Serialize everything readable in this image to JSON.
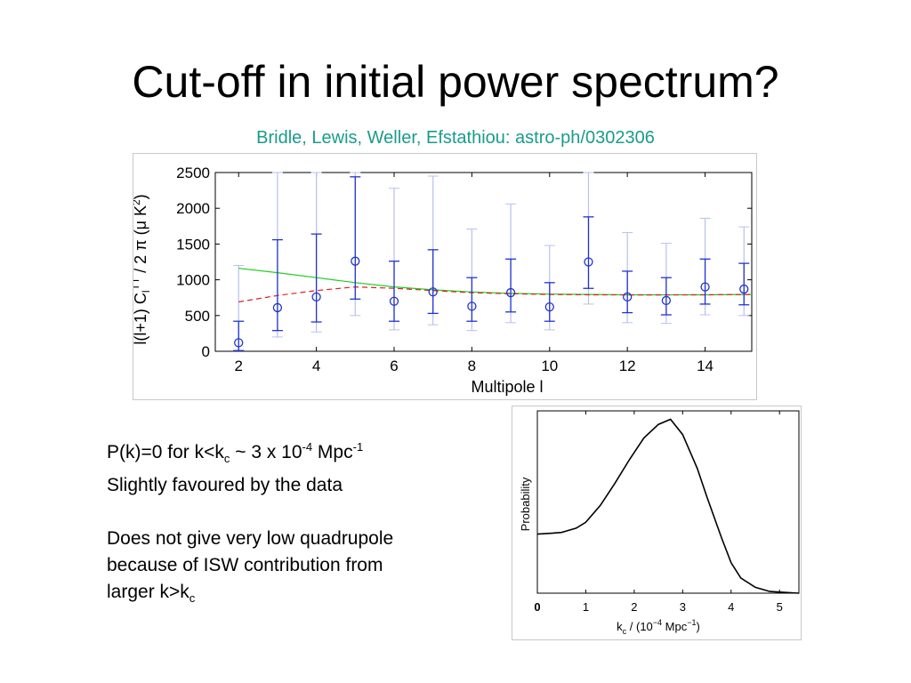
{
  "slide": {
    "title": "Cut-off in initial power spectrum?",
    "subtitle": "Bridle, Lewis, Weller, Efstathiou: astro-ph/0302306",
    "colors": {
      "subtitle": "#1a9c8c",
      "errorbar": "#2233cc",
      "errorbar_light": "#b8c0f0",
      "theory_green": "#22cc22",
      "theory_red": "#dd2222"
    }
  },
  "text": {
    "line1_a": "P(k)=0 for k<k",
    "line1_sub": "c",
    "line1_b": " ~ 3 x 10",
    "line1_sup": "-4",
    "line1_c": " Mpc",
    "line1_sup2": "-1",
    "line2": "Slightly favoured by the data",
    "line3": "Does not give very low quadrupole",
    "line4": "because of ISW contribution from",
    "line5_a": "larger k>k",
    "line5_sub": "c"
  },
  "chart_data": [
    {
      "type": "scatter",
      "xlabel": "Multipole l",
      "ylabel": "l(l+1) C_l^TT / 2 π (μ K^2)",
      "xlim": [
        1.4,
        15.2
      ],
      "ylim": [
        0,
        2500
      ],
      "xticks": [
        "2",
        "4",
        "6",
        "8",
        "10",
        "12",
        "14"
      ],
      "yticks": [
        "0",
        "500",
        "1000",
        "1500",
        "2000",
        "2500"
      ],
      "grid": false,
      "points": [
        {
          "x": 2,
          "y": 120,
          "lo": 10,
          "hi": 420,
          "lo2": 10,
          "hi2": 1200
        },
        {
          "x": 3,
          "y": 610,
          "lo": 290,
          "hi": 1560,
          "lo2": 200,
          "hi2": 2500
        },
        {
          "x": 4,
          "y": 760,
          "lo": 410,
          "hi": 1640,
          "lo2": 270,
          "hi2": 2500
        },
        {
          "x": 5,
          "y": 1260,
          "lo": 730,
          "hi": 2440,
          "lo2": 500,
          "hi2": 2500
        },
        {
          "x": 6,
          "y": 700,
          "lo": 420,
          "hi": 1260,
          "lo2": 300,
          "hi2": 2280
        },
        {
          "x": 7,
          "y": 830,
          "lo": 530,
          "hi": 1420,
          "lo2": 370,
          "hi2": 2450
        },
        {
          "x": 8,
          "y": 630,
          "lo": 420,
          "hi": 1030,
          "lo2": 290,
          "hi2": 1710
        },
        {
          "x": 9,
          "y": 820,
          "lo": 550,
          "hi": 1290,
          "lo2": 400,
          "hi2": 2060
        },
        {
          "x": 10,
          "y": 620,
          "lo": 420,
          "hi": 960,
          "lo2": 300,
          "hi2": 1480
        },
        {
          "x": 11,
          "y": 1250,
          "lo": 880,
          "hi": 1880,
          "lo2": 660,
          "hi2": 2500
        },
        {
          "x": 12,
          "y": 760,
          "lo": 540,
          "hi": 1120,
          "lo2": 400,
          "hi2": 1660
        },
        {
          "x": 13,
          "y": 710,
          "lo": 510,
          "hi": 1030,
          "lo2": 390,
          "hi2": 1510
        },
        {
          "x": 14,
          "y": 900,
          "lo": 660,
          "hi": 1290,
          "lo2": 510,
          "hi2": 1860
        },
        {
          "x": 15,
          "y": 870,
          "lo": 650,
          "hi": 1230,
          "lo2": 500,
          "hi2": 1740
        }
      ],
      "series": [
        {
          "style": "solid",
          "x": [
            2,
            3,
            4,
            5,
            6,
            7,
            8,
            9,
            10,
            11,
            12,
            13,
            14,
            15.2
          ],
          "y": [
            1160,
            1100,
            1030,
            960,
            900,
            860,
            830,
            810,
            800,
            795,
            790,
            790,
            790,
            795
          ]
        },
        {
          "style": "dashed",
          "x": [
            2,
            3,
            4,
            5,
            6,
            7,
            8,
            9,
            10,
            11,
            12,
            13,
            14,
            15.2
          ],
          "y": [
            690,
            780,
            850,
            900,
            880,
            850,
            820,
            805,
            795,
            790,
            788,
            788,
            790,
            795
          ]
        }
      ]
    },
    {
      "type": "line",
      "xlabel": "k_c / (10^-4 Mpc^-1)",
      "ylabel": "Probability",
      "xlim": [
        0,
        5.4
      ],
      "ylim": [
        0,
        1
      ],
      "xticks": [
        "0",
        "1",
        "2",
        "3",
        "4",
        "5"
      ],
      "x": [
        0,
        0.3,
        0.5,
        0.8,
        1.0,
        1.3,
        1.6,
        1.9,
        2.2,
        2.5,
        2.75,
        3.0,
        3.3,
        3.5,
        3.8,
        4.0,
        4.2,
        4.5,
        4.8,
        5.2,
        5.4
      ],
      "y": [
        0.35,
        0.355,
        0.36,
        0.385,
        0.42,
        0.52,
        0.65,
        0.79,
        0.92,
        1.0,
        1.03,
        0.94,
        0.74,
        0.57,
        0.33,
        0.18,
        0.09,
        0.035,
        0.01,
        0.003,
        0.0
      ]
    }
  ]
}
